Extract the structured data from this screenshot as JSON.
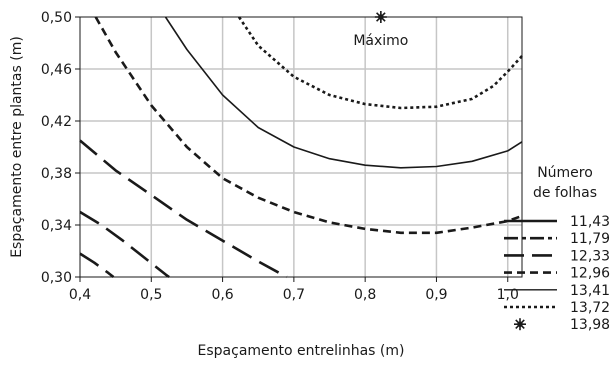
{
  "chart_data": {
    "type": "contour",
    "xlabel": "Espaçamento entrelinhas (m)",
    "ylabel": "Espaçamento entre plantas (m)",
    "xlim": [
      0.4,
      1.02
    ],
    "ylim": [
      0.3,
      0.5
    ],
    "x_ticks": [
      "0,4",
      "0,5",
      "0,6",
      "0,7",
      "0,8",
      "0,9",
      "1,0"
    ],
    "x_tick_values": [
      0.4,
      0.5,
      0.6,
      0.7,
      0.8,
      0.9,
      1.0
    ],
    "y_ticks": [
      "0,30",
      "0,34",
      "0,38",
      "0,42",
      "0,46",
      "0,50"
    ],
    "y_tick_values": [
      0.3,
      0.34,
      0.38,
      0.42,
      0.46,
      0.5
    ],
    "grid": true,
    "legend": {
      "title_line1": "Número",
      "title_line2": "de folhas",
      "position": "right"
    },
    "series": [
      {
        "name": "11,43",
        "style": "dash-long",
        "points": [
          [
            0.4,
            0.318
          ],
          [
            0.42,
            0.311
          ],
          [
            0.44,
            0.303
          ],
          [
            0.447,
            0.3
          ]
        ]
      },
      {
        "name": "11,79",
        "style": "dash-long",
        "points": [
          [
            0.4,
            0.35
          ],
          [
            0.43,
            0.34
          ],
          [
            0.46,
            0.328
          ],
          [
            0.49,
            0.315
          ],
          [
            0.52,
            0.302
          ],
          [
            0.525,
            0.3
          ]
        ]
      },
      {
        "name": "12,33",
        "style": "dash-long",
        "points": [
          [
            0.4,
            0.405
          ],
          [
            0.45,
            0.382
          ],
          [
            0.5,
            0.363
          ],
          [
            0.55,
            0.344
          ],
          [
            0.6,
            0.328
          ],
          [
            0.65,
            0.312
          ],
          [
            0.69,
            0.3
          ]
        ]
      },
      {
        "name": "12,96",
        "style": "dash-short",
        "points": [
          [
            0.422,
            0.5
          ],
          [
            0.45,
            0.473
          ],
          [
            0.5,
            0.432
          ],
          [
            0.55,
            0.4
          ],
          [
            0.6,
            0.376
          ],
          [
            0.65,
            0.361
          ],
          [
            0.7,
            0.35
          ],
          [
            0.75,
            0.342
          ],
          [
            0.8,
            0.337
          ],
          [
            0.85,
            0.334
          ],
          [
            0.9,
            0.334
          ],
          [
            0.95,
            0.338
          ],
          [
            1.0,
            0.343
          ],
          [
            1.02,
            0.347
          ]
        ]
      },
      {
        "name": "13,41",
        "style": "solid",
        "points": [
          [
            0.52,
            0.5
          ],
          [
            0.55,
            0.475
          ],
          [
            0.6,
            0.44
          ],
          [
            0.65,
            0.415
          ],
          [
            0.7,
            0.4
          ],
          [
            0.75,
            0.391
          ],
          [
            0.8,
            0.386
          ],
          [
            0.85,
            0.384
          ],
          [
            0.9,
            0.385
          ],
          [
            0.95,
            0.389
          ],
          [
            1.0,
            0.397
          ],
          [
            1.02,
            0.404
          ]
        ]
      },
      {
        "name": "13,72",
        "style": "dotted",
        "points": [
          [
            0.623,
            0.5
          ],
          [
            0.65,
            0.478
          ],
          [
            0.7,
            0.454
          ],
          [
            0.75,
            0.44
          ],
          [
            0.8,
            0.433
          ],
          [
            0.85,
            0.43
          ],
          [
            0.9,
            0.431
          ],
          [
            0.95,
            0.437
          ],
          [
            0.98,
            0.447
          ],
          [
            1.0,
            0.458
          ],
          [
            1.02,
            0.47
          ]
        ]
      }
    ],
    "maximum": {
      "name": "13,98",
      "label": "Máximo",
      "x": 0.822,
      "y": 0.5
    }
  }
}
